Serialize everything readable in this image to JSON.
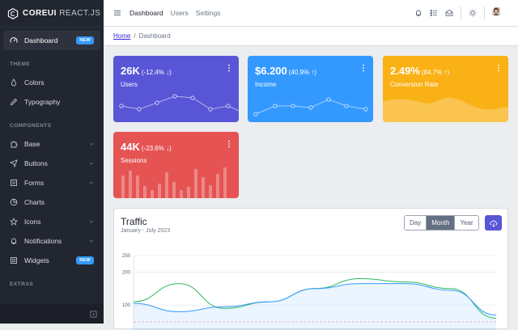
{
  "brand": {
    "name": "COREUI",
    "suffix": "REACT.JS"
  },
  "sidebar": {
    "top": {
      "label": "Dashboard",
      "badge": "NEW",
      "icon": "speedometer-icon"
    },
    "sections": [
      {
        "title": "THEME",
        "items": [
          {
            "label": "Colors",
            "icon": "drop-icon"
          },
          {
            "label": "Typography",
            "icon": "pencil-icon"
          }
        ]
      },
      {
        "title": "COMPONENTS",
        "items": [
          {
            "label": "Base",
            "icon": "puzzle-icon",
            "chevron": true
          },
          {
            "label": "Buttons",
            "icon": "cursor-icon",
            "chevron": true
          },
          {
            "label": "Forms",
            "icon": "notes-icon",
            "chevron": true
          },
          {
            "label": "Charts",
            "icon": "chart-pie-icon"
          },
          {
            "label": "Icons",
            "icon": "star-icon",
            "chevron": true
          },
          {
            "label": "Notifications",
            "icon": "bell-icon",
            "chevron": true
          },
          {
            "label": "Widgets",
            "icon": "calculator-icon",
            "badge": "NEW"
          }
        ]
      },
      {
        "title": "EXTRAS",
        "items": []
      }
    ]
  },
  "header": {
    "nav": [
      "Dashboard",
      "Users",
      "Settings"
    ]
  },
  "breadcrumb": {
    "home": "Home",
    "sep": "/",
    "current": "Dashboard"
  },
  "widgets": [
    {
      "value": "26K",
      "change": "(-12.4% ↓)",
      "label": "Users",
      "color": "#5856d6"
    },
    {
      "value": "$6.200",
      "change": "(40.9% ↑)",
      "label": "Income",
      "color": "#3399ff"
    },
    {
      "value": "2.49%",
      "change": "(84.7% ↑)",
      "label": "Conversion Rate",
      "color": "#f9b115"
    },
    {
      "value": "44K",
      "change": "(-23.6% ↓)",
      "label": "Sessions",
      "color": "#e55353"
    }
  ],
  "traffic": {
    "title": "Traffic",
    "subtitle": "January - July 2023",
    "buttons": [
      "Day",
      "Month",
      "Year"
    ],
    "active": "Month"
  },
  "chart_data": {
    "type": "line",
    "title": "Traffic",
    "yticks": [
      100,
      200,
      250
    ],
    "ylim": [
      0,
      250
    ],
    "grid": true,
    "series": [
      {
        "color": "#2eb85c",
        "values": [
          110,
          165,
          90,
          110,
          150,
          180,
          170,
          150,
          60
        ]
      },
      {
        "color": "#39f",
        "values": [
          105,
          80,
          95,
          110,
          150,
          165,
          165,
          145,
          70
        ]
      }
    ]
  }
}
